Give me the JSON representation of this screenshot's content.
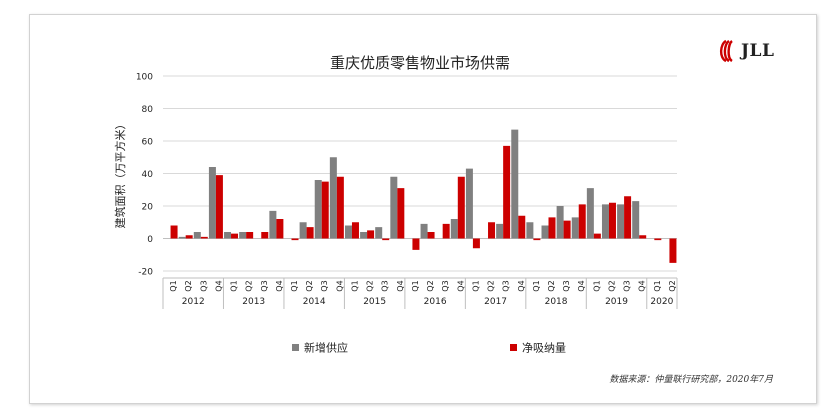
{
  "logo": {
    "text": "JLL",
    "color": "#cc0000"
  },
  "source": "数据来源：仲量联行研究部，2020年7月",
  "chart_data": {
    "type": "bar",
    "title": "重庆优质零售物业市场供需",
    "xlabel": "",
    "ylabel": "建筑面积（万平方米）",
    "ylim": [
      -20,
      100
    ],
    "yticks": [
      -20,
      0,
      20,
      40,
      60,
      80,
      100
    ],
    "grid": true,
    "legend_position": "bottom",
    "categories": [
      "Q1",
      "Q2",
      "Q3",
      "Q4",
      "Q1",
      "Q2",
      "Q3",
      "Q4",
      "Q1",
      "Q2",
      "Q3",
      "Q4",
      "Q1",
      "Q2",
      "Q3",
      "Q4",
      "Q1",
      "Q2",
      "Q3",
      "Q4",
      "Q1",
      "Q2",
      "Q3",
      "Q4",
      "Q1",
      "Q2",
      "Q3",
      "Q4",
      "Q1",
      "Q2",
      "Q3",
      "Q4",
      "Q1",
      "Q2"
    ],
    "groups": [
      {
        "label": "2012",
        "count": 4
      },
      {
        "label": "2013",
        "count": 4
      },
      {
        "label": "2014",
        "count": 4
      },
      {
        "label": "2015",
        "count": 4
      },
      {
        "label": "2016",
        "count": 4
      },
      {
        "label": "2017",
        "count": 4
      },
      {
        "label": "2018",
        "count": 4
      },
      {
        "label": "2019",
        "count": 4
      },
      {
        "label": "2020",
        "count": 2
      }
    ],
    "series": [
      {
        "name": "新增供应",
        "color": "#808080",
        "values": [
          0,
          1,
          4,
          44,
          4,
          4,
          0,
          17,
          0,
          10,
          36,
          50,
          8,
          4,
          7,
          38,
          0,
          9,
          0,
          12,
          43,
          0,
          9,
          67,
          10,
          8,
          20,
          13,
          31,
          21,
          21,
          23,
          0,
          0
        ]
      },
      {
        "name": "净吸纳量",
        "color": "#cc0000",
        "values": [
          8,
          2,
          1,
          39,
          3,
          4,
          4,
          12,
          -1,
          7,
          35,
          38,
          10,
          5,
          -1,
          31,
          -7,
          4,
          9,
          38,
          -6,
          10,
          57,
          14,
          -1,
          13,
          11,
          21,
          3,
          22,
          26,
          2,
          -1,
          -15
        ]
      }
    ]
  }
}
